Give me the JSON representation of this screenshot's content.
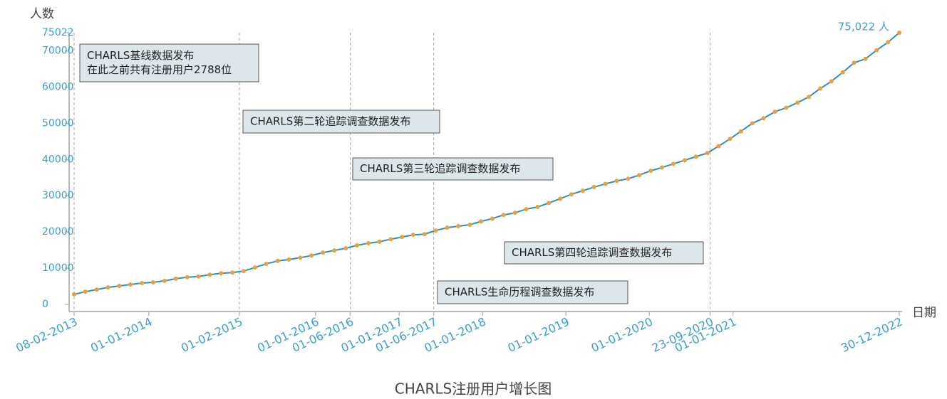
{
  "chart_data": {
    "type": "line",
    "title": "CHARLS注册用户增长图",
    "y_label": "人数",
    "x_label": "日期",
    "x": [
      "2013-02-08",
      "2013-03-29",
      "2013-05-18",
      "2013-07-06",
      "2013-08-25",
      "2013-10-13",
      "2013-12-02",
      "2014-01-20",
      "2014-03-11",
      "2014-04-29",
      "2014-06-18",
      "2014-08-06",
      "2014-09-25",
      "2014-11-13",
      "2015-01-02",
      "2015-02-20",
      "2015-04-11",
      "2015-05-30",
      "2015-07-19",
      "2015-09-06",
      "2015-10-26",
      "2015-12-14",
      "2016-02-02",
      "2016-03-23",
      "2016-05-12",
      "2016-06-30",
      "2016-08-19",
      "2016-10-07",
      "2016-11-25",
      "2017-01-13",
      "2017-03-03",
      "2017-04-22",
      "2017-06-10",
      "2017-07-30",
      "2017-09-17",
      "2017-11-06",
      "2017-12-25",
      "2018-02-13",
      "2018-04-03",
      "2018-05-23",
      "2018-07-11",
      "2018-08-30",
      "2018-10-18",
      "2018-12-07",
      "2019-01-25",
      "2019-03-16",
      "2019-05-04",
      "2019-06-23",
      "2019-08-11",
      "2019-09-30",
      "2019-11-18",
      "2020-01-07",
      "2020-02-25",
      "2020-04-15",
      "2020-06-04",
      "2020-07-23",
      "2020-09-11",
      "2020-10-30",
      "2020-12-19",
      "2021-02-05",
      "2021-03-27",
      "2021-05-15",
      "2021-07-04",
      "2021-08-22",
      "2021-10-11",
      "2021-11-29",
      "2022-01-18",
      "2022-03-08",
      "2022-04-27",
      "2022-06-15",
      "2022-08-04",
      "2022-09-22",
      "2022-11-11",
      "2022-12-30"
    ],
    "series": [
      {
        "name": "注册用户",
        "color": "#2b8fc0",
        "marker_color": "#e9a23b",
        "values": [
          2788,
          3500,
          4100,
          4700,
          5100,
          5500,
          5900,
          6100,
          6500,
          7100,
          7500,
          7700,
          8200,
          8600,
          8800,
          9200,
          10200,
          11200,
          12000,
          12400,
          12900,
          13500,
          14300,
          14900,
          15500,
          16300,
          16900,
          17300,
          18000,
          18600,
          19200,
          19400,
          20400,
          21200,
          21600,
          22000,
          22900,
          23700,
          24700,
          25300,
          26300,
          26900,
          28000,
          29200,
          30400,
          31400,
          32400,
          33300,
          34100,
          34700,
          35700,
          36900,
          37800,
          38800,
          39800,
          40800,
          41800,
          43700,
          45700,
          47800,
          50000,
          51400,
          53200,
          54300,
          55700,
          57300,
          59600,
          61600,
          64100,
          66700,
          67800,
          70200,
          72400,
          75022
        ],
        "value_labels": [
          null,
          null,
          null,
          null,
          null,
          null,
          null,
          null,
          null,
          null,
          null,
          null,
          null,
          null,
          null,
          null,
          null,
          null,
          null,
          null,
          null,
          null,
          null,
          null,
          null,
          null,
          null,
          null,
          null,
          null,
          null,
          null,
          null,
          null,
          null,
          null,
          null,
          null,
          null,
          null,
          null,
          null,
          null,
          null,
          null,
          null,
          null,
          null,
          null,
          null,
          null,
          null,
          null,
          null,
          null,
          null,
          null,
          null,
          null,
          null,
          null,
          null,
          null,
          null,
          null,
          null,
          null,
          null,
          null,
          null,
          null,
          null,
          null,
          "75,022 人"
        ]
      }
    ],
    "xlim": [
      "2013-02-08",
      "2022-12-30"
    ],
    "xticks": [
      {
        "value": "2013-02-08",
        "label": "08-02-2013"
      },
      {
        "value": "2014-01-01",
        "label": "01-01-2014"
      },
      {
        "value": "2015-02-01",
        "label": "01-02-2015"
      },
      {
        "value": "2016-01-01",
        "label": "01-01-2016"
      },
      {
        "value": "2016-06-01",
        "label": "01-06-2016"
      },
      {
        "value": "2017-01-01",
        "label": "01-01-2017"
      },
      {
        "value": "2017-06-01",
        "label": "01-06-2017"
      },
      {
        "value": "2018-01-01",
        "label": "01-01-2018"
      },
      {
        "value": "2019-01-01",
        "label": "01-01-2019"
      },
      {
        "value": "2020-01-01",
        "label": "01-01-2020"
      },
      {
        "value": "2020-09-23",
        "label": "23-09-2020"
      },
      {
        "value": "2021-01-01",
        "label": "01-01-2021"
      },
      {
        "value": "2022-12-30",
        "label": "30-12-2022"
      }
    ],
    "ylim": [
      0,
      75022
    ],
    "yticks": [
      0,
      10000,
      20000,
      30000,
      40000,
      50000,
      60000,
      70000,
      75022
    ],
    "annotations": [
      {
        "x": "2013-02-08",
        "lines": [
          "CHARLS基线数据发布",
          "在此之前共有注册用户2788位"
        ]
      },
      {
        "x": "2015-02-01",
        "lines": [
          "CHARLS第二轮追踪调查数据发布"
        ]
      },
      {
        "x": "2016-06-01",
        "lines": [
          "CHARLS第三轮追踪调查数据发布"
        ]
      },
      {
        "x": "2020-09-23",
        "lines": [
          "CHARLS第四轮追踪调查数据发布"
        ]
      },
      {
        "x": "2017-06-01",
        "lines": [
          "CHARLS生命历程调查数据发布"
        ]
      }
    ]
  }
}
